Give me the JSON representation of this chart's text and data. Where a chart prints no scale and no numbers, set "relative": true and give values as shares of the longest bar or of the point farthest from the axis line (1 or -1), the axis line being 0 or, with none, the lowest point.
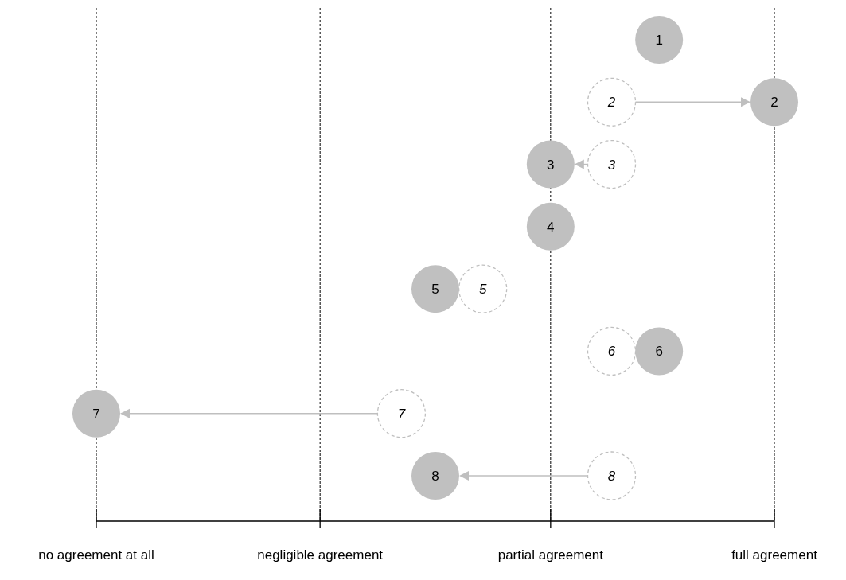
{
  "chart_data": {
    "type": "scatter",
    "orientation": "horizontal",
    "relative": true,
    "categories": [
      "1",
      "2",
      "3",
      "4",
      "5",
      "6",
      "7",
      "8"
    ],
    "marker": "circle",
    "ref_lines": [
      {
        "axis": "x",
        "value": 0,
        "label": "no agreement at all",
        "line_style": "dashed",
        "color": "#000000"
      },
      {
        "axis": "x",
        "value": 0.33,
        "label": "negligible agreement",
        "line_style": "dashed",
        "color": "#000000"
      },
      {
        "axis": "x",
        "value": 0.67,
        "label": "partial agreement",
        "line_style": "dashed",
        "color": "#000000"
      },
      {
        "axis": "x",
        "value": 1,
        "label": "full agreement",
        "line_style": "dashed",
        "color": "#000000"
      }
    ],
    "series": [
      {
        "color": "#bfbfbf",
        "values": [
          null,
          0.76,
          0.76,
          null,
          0.57,
          0.76,
          0.45,
          0.76
        ]
      },
      {
        "color": "#c0c0c0",
        "values": [
          0.83,
          1,
          0.67,
          0.67,
          0.5,
          0.83,
          0,
          0.5
        ]
      }
    ]
  }
}
